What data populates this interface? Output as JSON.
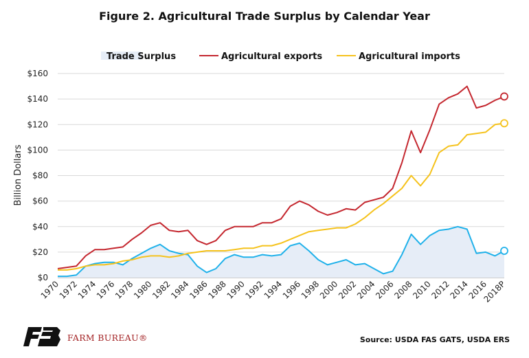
{
  "title": "Figure 2. Agricultural Trade Surplus by Calendar Year",
  "brand": "FARM BUREAU®",
  "source": "Source: USDA FAS GATS, USDA ERS",
  "colors": {
    "exports": "#c4262e",
    "imports": "#f5c21b",
    "surplus_line": "#1fb1ea",
    "surplus_fill": "#e6edf7",
    "logo": "#111111"
  },
  "chart_data": {
    "type": "line",
    "title": "Figure 2. Agricultural Trade Surplus by Calendar Year",
    "xlabel": "",
    "ylabel": "Billion Dollars",
    "ylim": [
      0,
      160
    ],
    "yticks": [
      "$0",
      "$20",
      "$40",
      "$60",
      "$80",
      "$100",
      "$120",
      "$140",
      "$160"
    ],
    "grid": "horizontal",
    "legend": "top",
    "x": [
      "1970",
      "1971",
      "1972",
      "1973",
      "1974",
      "1975",
      "1976",
      "1977",
      "1978",
      "1979",
      "1980",
      "1981",
      "1982",
      "1983",
      "1984",
      "1985",
      "1986",
      "1987",
      "1988",
      "1989",
      "1990",
      "1991",
      "1992",
      "1993",
      "1994",
      "1995",
      "1996",
      "1997",
      "1998",
      "1999",
      "2000",
      "2001",
      "2002",
      "2003",
      "2004",
      "2005",
      "2006",
      "2007",
      "2008",
      "2009",
      "2010",
      "2011",
      "2012",
      "2013",
      "2014",
      "2015",
      "2016",
      "2017",
      "2018P"
    ],
    "x_tick_labels": [
      "1970",
      "1972",
      "1974",
      "1976",
      "1978",
      "1980",
      "1982",
      "1984",
      "1986",
      "1988",
      "1990",
      "1992",
      "1994",
      "1996",
      "1998",
      "2000",
      "2002",
      "2004",
      "2006",
      "2008",
      "2010",
      "2012",
      "2014",
      "2016",
      "2018P"
    ],
    "series": [
      {
        "name": "Trade Surplus",
        "style": "area",
        "values": [
          1,
          1,
          2,
          9,
          11,
          12,
          12,
          10,
          15,
          19,
          23,
          26,
          21,
          19,
          18,
          9,
          4,
          7,
          15,
          18,
          16,
          16,
          18,
          17,
          18,
          25,
          27,
          21,
          14,
          10,
          12,
          14,
          10,
          11,
          7,
          3,
          5,
          18,
          34,
          26,
          33,
          37,
          38,
          40,
          38,
          19,
          20,
          17,
          21
        ]
      },
      {
        "name": "Agricultural exports",
        "style": "line",
        "values": [
          7,
          8,
          9,
          17,
          22,
          22,
          23,
          24,
          30,
          35,
          41,
          43,
          37,
          36,
          37,
          29,
          26,
          29,
          37,
          40,
          40,
          40,
          43,
          43,
          46,
          56,
          60,
          57,
          52,
          49,
          51,
          54,
          53,
          59,
          61,
          63,
          70,
          90,
          115,
          98,
          116,
          136,
          141,
          144,
          150,
          133,
          135,
          139,
          142
        ]
      },
      {
        "name": "Agricultural imports",
        "style": "line",
        "values": [
          6,
          6,
          7,
          9,
          10,
          10,
          11,
          13,
          14,
          16,
          17,
          17,
          16,
          17,
          19,
          20,
          21,
          21,
          21,
          22,
          23,
          23,
          25,
          25,
          27,
          30,
          33,
          36,
          37,
          38,
          39,
          39,
          42,
          47,
          53,
          58,
          64,
          70,
          80,
          72,
          81,
          98,
          103,
          104,
          112,
          113,
          114,
          120,
          121
        ]
      }
    ]
  }
}
